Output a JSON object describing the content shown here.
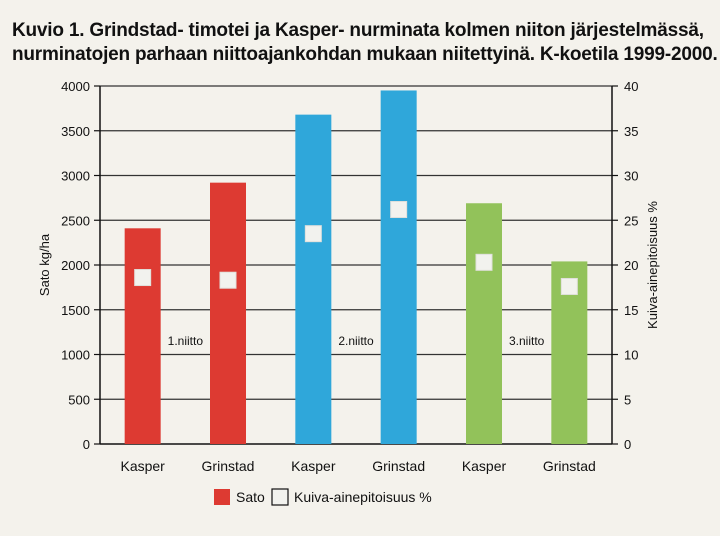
{
  "chart_data": {
    "type": "bar",
    "title_lines": [
      "Kuvio 1. Grindstad- timotei ja Kasper- nurminata kolmen niiton järjestelmässä,",
      "nurminatojen parhaan niittoajankohdan mukaan niitettyinä. K-koetila 1999-2000."
    ],
    "categories": [
      "Kasper",
      "Grinstad",
      "Kasper",
      "Grinstad",
      "Kasper",
      "Grinstad"
    ],
    "groups": [
      {
        "label": "1.niitto",
        "color": "#dd3a32"
      },
      {
        "label": "2.niitto",
        "color": "#2fa7da"
      },
      {
        "label": "3.niitto",
        "color": "#92c25a"
      }
    ],
    "bar_group_index": [
      0,
      0,
      1,
      1,
      2,
      2
    ],
    "series": [
      {
        "name": "Sato",
        "axis": "left",
        "values": [
          2410,
          2920,
          3680,
          3950,
          2690,
          2040
        ]
      },
      {
        "name": "Kuiva-ainepitoisuus %",
        "axis": "right",
        "values": [
          18.6,
          18.3,
          23.5,
          26.2,
          20.3,
          17.6
        ]
      }
    ],
    "ylabel": "Sato kg/ha",
    "ylabel_right": "Kuiva-ainepitoisuus %",
    "ylim": [
      0,
      4000
    ],
    "ylim_right": [
      0,
      40
    ],
    "yticks": [
      "0",
      "500",
      "1000",
      "1500",
      "2000",
      "2500",
      "3000",
      "3500",
      "4000"
    ],
    "yticks_right": [
      "0",
      "5",
      "10",
      "15",
      "20",
      "25",
      "30",
      "35",
      "40"
    ],
    "grid": true,
    "legend": {
      "position": "bottom",
      "items": [
        "Sato",
        "Kuiva-ainepitoisuus %"
      ]
    }
  }
}
